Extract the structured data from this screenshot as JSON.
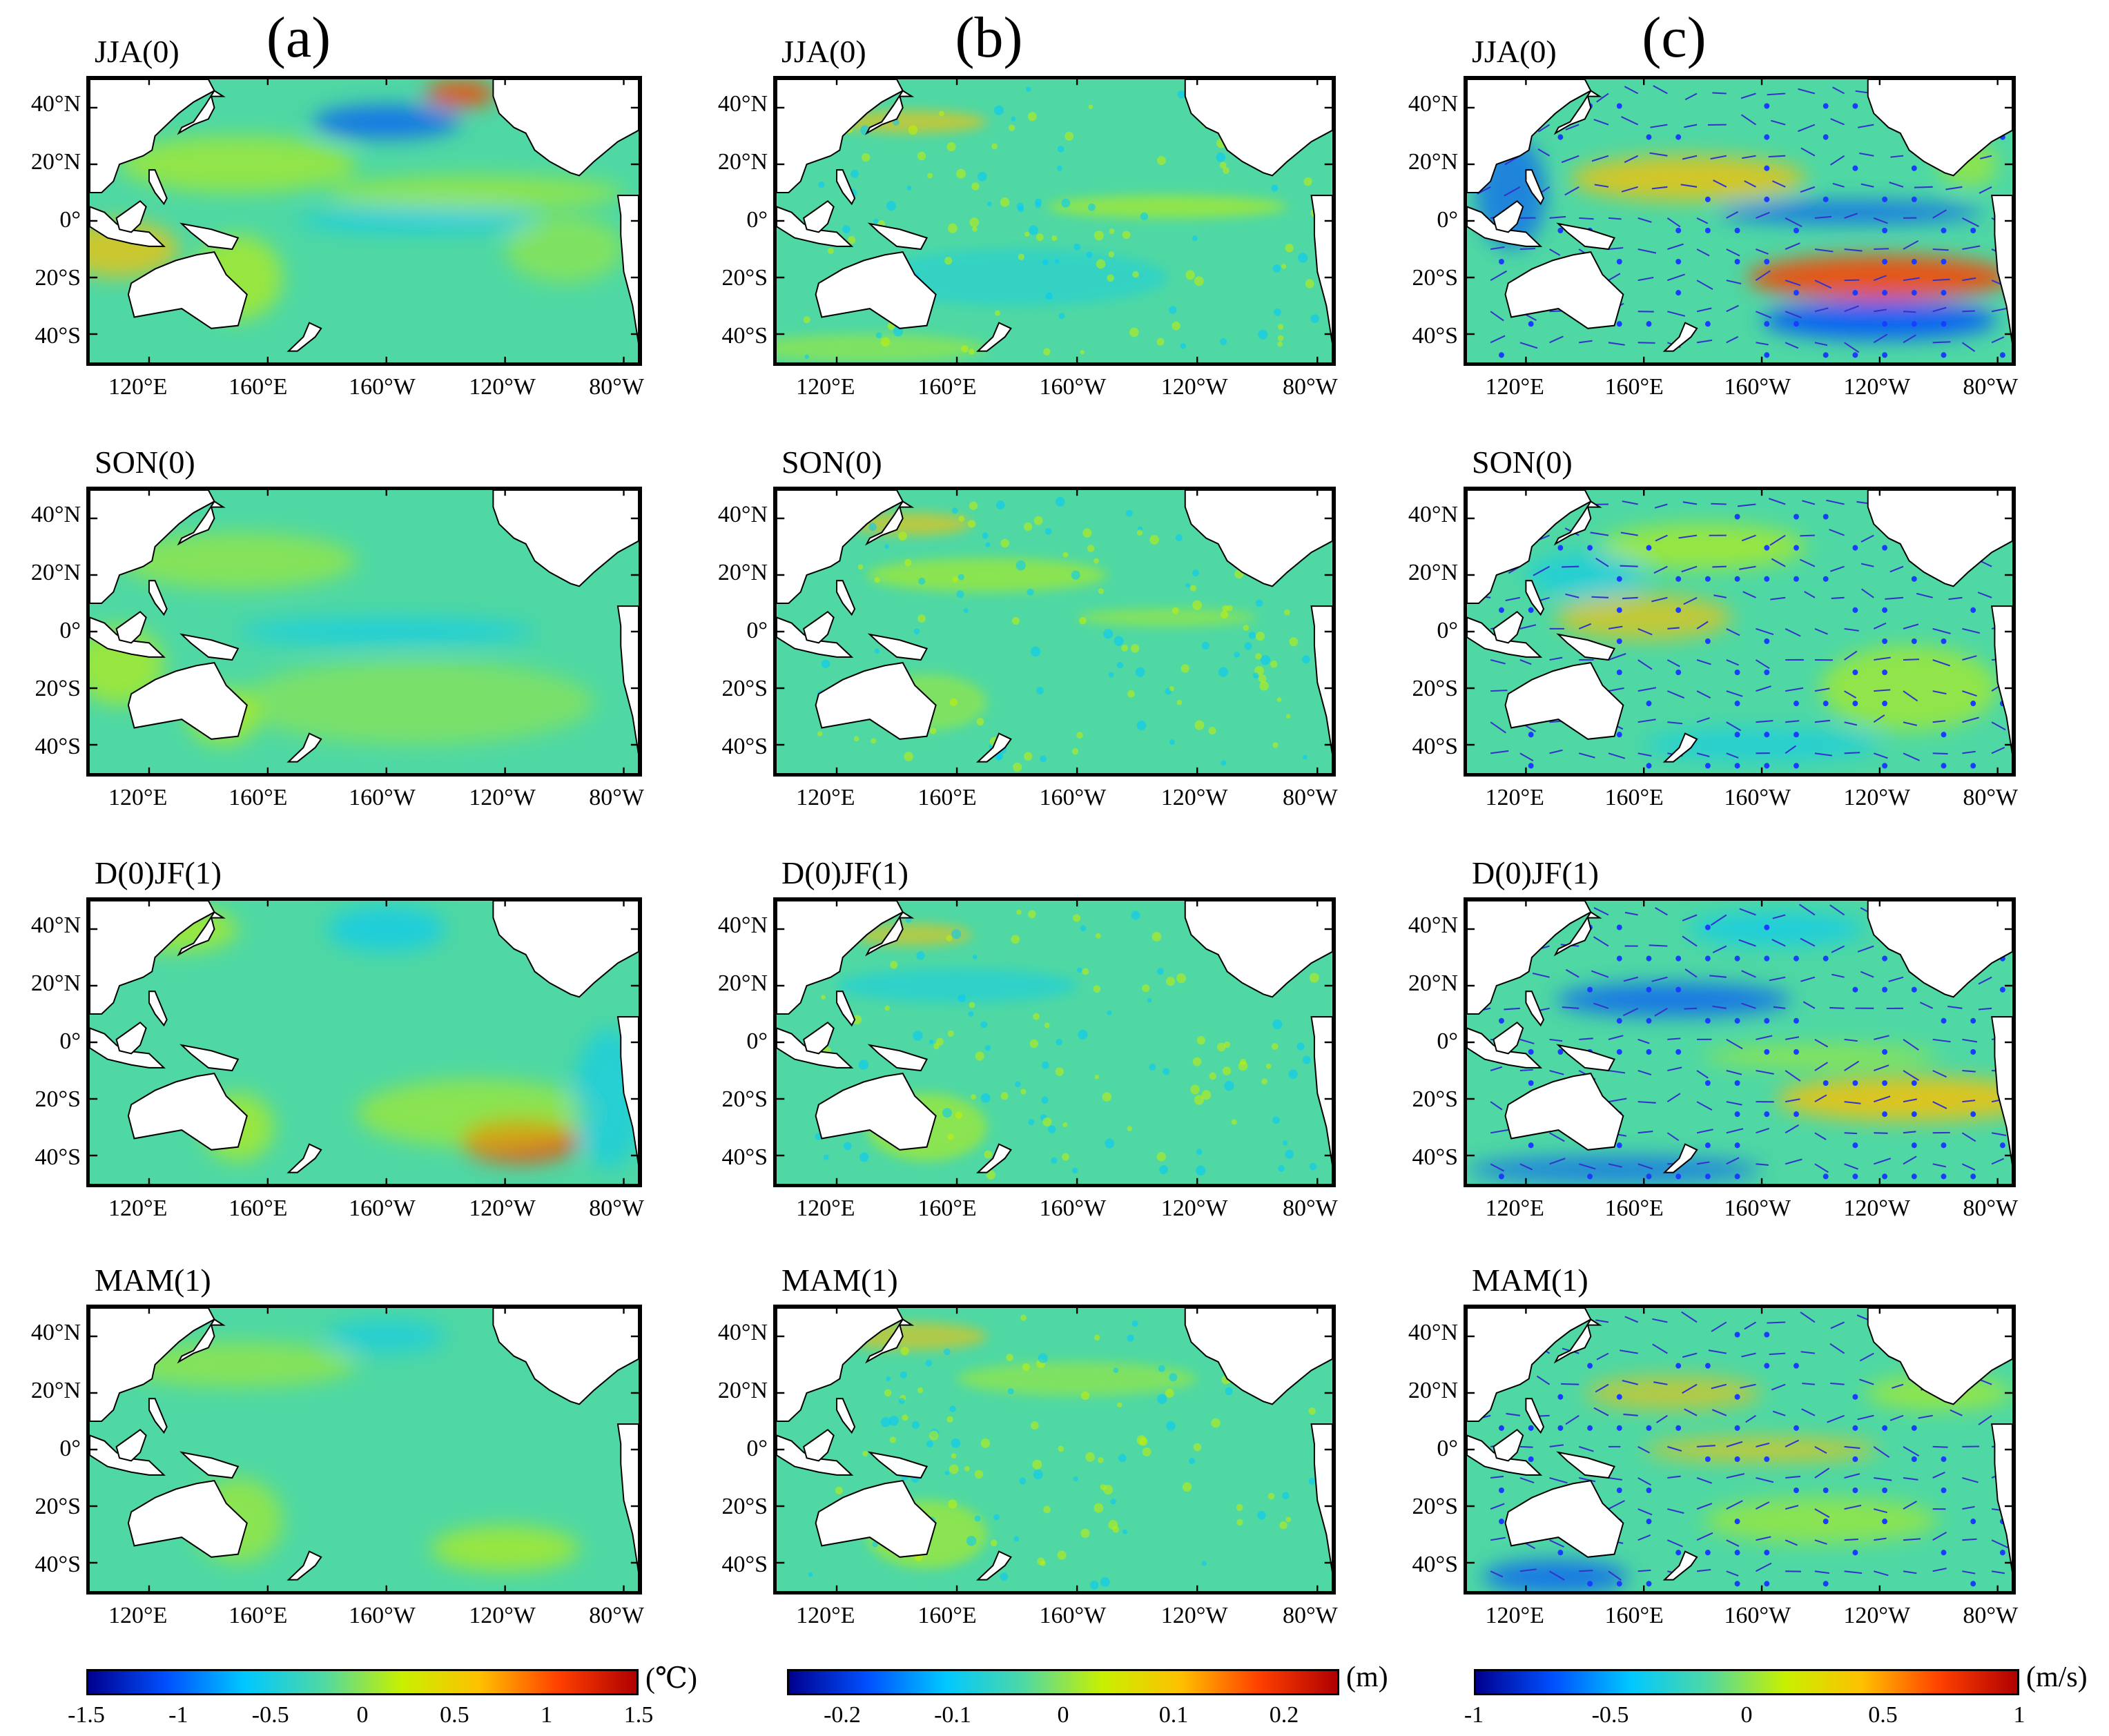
{
  "columns": [
    {
      "label": "(a)",
      "unit": "(℃)",
      "colorbar_ticks": [
        "-1.5",
        "-1",
        "-0.5",
        "0",
        "0.5",
        "1",
        "1.5"
      ],
      "colorbar_range": [
        -1.5,
        1.5
      ]
    },
    {
      "label": "(b)",
      "unit": "(m)",
      "colorbar_ticks": [
        "-0.2",
        "-0.1",
        "0",
        "0.1",
        "0.2"
      ],
      "colorbar_range": [
        -0.25,
        0.25
      ]
    },
    {
      "label": "(c)",
      "unit": "(m/s)",
      "colorbar_ticks": [
        "-1",
        "-0.5",
        "0",
        "0.5",
        "1"
      ],
      "colorbar_range": [
        -1,
        1
      ]
    }
  ],
  "seasons": [
    "JJA(0)",
    "SON(0)",
    "D(0)JF(1)",
    "MAM(1)"
  ],
  "lat_labels": [
    "40°N",
    "20°N",
    "0°",
    "20°S",
    "40°S"
  ],
  "lon_labels": [
    "120°E",
    "160°E",
    "160°W",
    "120°W",
    "80°W"
  ],
  "map_extent": {
    "lon": [
      100,
      285
    ],
    "lat": [
      -50,
      50
    ]
  },
  "colors": {
    "colormap": [
      "#00008f",
      "#0050ff",
      "#00c8ff",
      "#4fd8a4",
      "#c8f000",
      "#ffc000",
      "#ff4000",
      "#b00000"
    ],
    "land": "#ffffff",
    "vector": "#3333cc",
    "dots": "#1a3cff"
  },
  "icons": {
    "land": "landmass-shape",
    "wind": "wind-vector-arrow",
    "significance": "significance-dot"
  }
}
